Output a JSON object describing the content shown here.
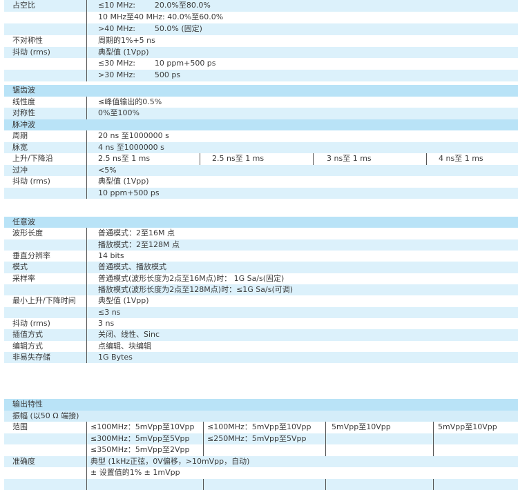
{
  "colors": {
    "header": "#b9e3f7",
    "shaded_row": "#dcf1fb",
    "subheader": "#d4edf9",
    "text": "#3a3a3a"
  },
  "sections": [
    {
      "header": null,
      "rows": [
        {
          "label": "占空比",
          "values": [
            "≤10 MHz:        20.0%至80.0%"
          ]
        },
        {
          "label": "",
          "values": [
            "10 MHz至40 MHz: 40.0%至60.0%"
          ]
        },
        {
          "label": "",
          "values": [
            ">40 MHz:        50.0% (固定)"
          ]
        },
        {
          "label": "不对称性",
          "values": [
            "周期的1%+5 ns"
          ]
        },
        {
          "label": "抖动 (rms)",
          "values": [
            "典型值 (1Vpp)"
          ]
        },
        {
          "label": "",
          "values": [
            "≤30 MHz:        10 ppm+500 ps"
          ]
        },
        {
          "label": "",
          "values": [
            ">30 MHz:        500 ps"
          ]
        }
      ]
    },
    {
      "header": "锯齿波",
      "rows": [
        {
          "label": "线性度",
          "values": [
            "≤峰值输出的0.5%"
          ]
        },
        {
          "label": "对称性",
          "values": [
            "0%至100%"
          ]
        },
        {
          "subheader": "脉冲波"
        },
        {
          "label": "周期",
          "values": [
            "20 ns 至1000000 s"
          ]
        },
        {
          "label": "脉宽",
          "values": [
            "4 ns 至1000000 s"
          ]
        },
        {
          "label": "上升/下降沿",
          "values": [
            "2.5 ns至 1 ms",
            "2.5 ns至 1 ms",
            "3 ns至 1 ms",
            "4 ns至 1 ms"
          ]
        },
        {
          "label": "过冲",
          "values": [
            "<5%"
          ]
        },
        {
          "label": "抖动 (rms)",
          "values": [
            "典型值 (1Vpp)"
          ]
        },
        {
          "label": "",
          "values": [
            "10 ppm+500 ps"
          ]
        }
      ]
    },
    {
      "header": "任意波",
      "rows": [
        {
          "label": "波形长度",
          "values": [
            "普通模式：2至16M 点"
          ]
        },
        {
          "label": "",
          "values": [
            "播放模式：2至128M 点"
          ]
        },
        {
          "label": "垂直分辨率",
          "values": [
            "14 bits"
          ]
        },
        {
          "label": "模式",
          "values": [
            "普通模式、播放模式"
          ]
        },
        {
          "label": "采样率",
          "values": [
            "普通模式(波形长度为2点至16M点)时： 1G Sa/s(固定)"
          ]
        },
        {
          "label": "",
          "values": [
            "播放模式(波形长度为2点至128M点)时：≤1G Sa/s(可调)"
          ]
        },
        {
          "label": "最小上升/下降时间",
          "values": [
            "典型值 (1Vpp)"
          ]
        },
        {
          "label": "",
          "values": [
            "≤3 ns"
          ]
        },
        {
          "label": "抖动 (rms)",
          "values": [
            "3 ns"
          ]
        },
        {
          "label": "插值方式",
          "values": [
            "关闭、线性、Sinc"
          ]
        },
        {
          "label": "编辑方式",
          "values": [
            "点编辑、块编辑"
          ]
        },
        {
          "label": "非易失存储",
          "values": [
            "1G Bytes"
          ]
        }
      ]
    },
    {
      "header": "输出特性",
      "rows": [
        {
          "subheader": "振幅 (以50 Ω 端接)"
        },
        {
          "label": "范围",
          "values": [
            "≤100MHz：5mVpp至10Vpp",
            "≤100MHz：5mVpp至10Vpp",
            "5mVpp至10Vpp",
            "5mVpp至10Vpp"
          ]
        },
        {
          "label": "",
          "values": [
            "≤300MHz：5mVpp至5Vpp",
            "≤250MHz：5mVpp至5Vpp",
            "",
            ""
          ]
        },
        {
          "label": "",
          "values": [
            "≤350MHz：5mVpp至2Vpp",
            "",
            "",
            ""
          ]
        },
        {
          "label": "准确度",
          "values": [
            "典型 (1kHz正弦，0V偏移，>10mVpp，自动)"
          ]
        },
        {
          "label": "",
          "values": [
            "± 设置值的1% ± 1mVpp"
          ]
        },
        {
          "label": "",
          "values": [
            "",
            "",
            "",
            ""
          ]
        }
      ]
    }
  ]
}
